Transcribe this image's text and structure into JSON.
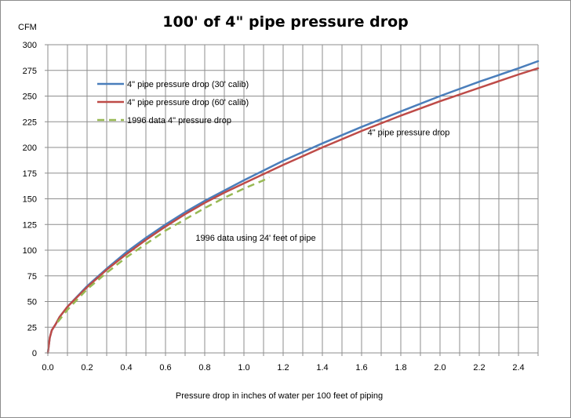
{
  "chart_data": {
    "type": "line",
    "title": "100' of 4\" pipe pressure drop",
    "xlabel": "Pressure drop in inches of water per 100 feet of piping",
    "ylabel": "CFM",
    "xlim": [
      0,
      2.5
    ],
    "ylim": [
      0,
      300
    ],
    "x_ticks": [
      "0.0",
      "0.2",
      "0.4",
      "0.6",
      "0.8",
      "1.0",
      "1.2",
      "1.4",
      "1.6",
      "1.8",
      "2.0",
      "2.2",
      "2.4"
    ],
    "y_ticks": [
      "0",
      "25",
      "50",
      "75",
      "100",
      "125",
      "150",
      "175",
      "200",
      "225",
      "250",
      "275",
      "300"
    ],
    "grid": true,
    "legend_position": "top-left",
    "series": [
      {
        "name": "4\" pipe pressure drop (30' calib)",
        "color": "#4a7ebb",
        "dash": "solid",
        "x": [
          0,
          0.01,
          0.02,
          0.04,
          0.06,
          0.1,
          0.2,
          0.3,
          0.4,
          0.5,
          0.6,
          0.7,
          0.8,
          0.9,
          1.0,
          1.2,
          1.4,
          1.6,
          1.8,
          2.0,
          2.2,
          2.4,
          2.5
        ],
        "y": [
          0,
          15,
          22,
          28,
          35,
          45,
          65,
          82,
          98,
          112,
          125,
          137,
          148,
          158,
          168,
          187,
          204,
          220,
          235,
          250,
          264,
          277,
          284
        ]
      },
      {
        "name": "4\" pipe pressure drop (60' calib)",
        "color": "#be4b48",
        "dash": "solid",
        "x": [
          0,
          0.01,
          0.02,
          0.04,
          0.06,
          0.1,
          0.2,
          0.3,
          0.4,
          0.5,
          0.6,
          0.7,
          0.8,
          0.9,
          1.0,
          1.2,
          1.4,
          1.6,
          1.8,
          2.0,
          2.2,
          2.4,
          2.5
        ],
        "y": [
          0,
          15,
          22,
          28,
          35,
          45,
          64,
          81,
          96,
          110,
          123,
          135,
          146,
          156,
          165,
          183,
          200,
          216,
          231,
          245,
          258,
          271,
          277
        ]
      },
      {
        "name": "1996 data 4\" pressure drop",
        "color": "#98b954",
        "dash": "dashed",
        "x": [
          0.05,
          0.1,
          0.2,
          0.3,
          0.4,
          0.5,
          0.6,
          0.7,
          0.8,
          0.9,
          1.0,
          1.1,
          1.13
        ],
        "y": [
          30,
          42,
          62,
          78,
          93,
          106,
          119,
          130,
          141,
          151,
          160,
          168,
          171
        ]
      }
    ],
    "annotations": [
      {
        "text": "4\" pipe pressure drop",
        "x": 1.84,
        "y": 212
      },
      {
        "text": "1996 data using 24' feet of pipe",
        "x": 1.06,
        "y": 109
      }
    ]
  }
}
